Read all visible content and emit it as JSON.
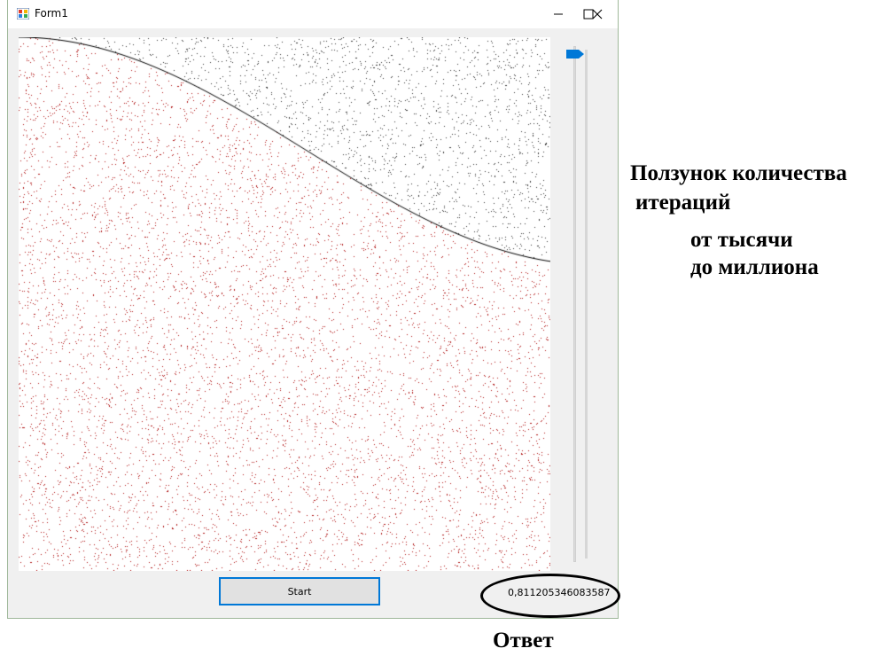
{
  "window": {
    "title": "Form1",
    "icons": {
      "app": "form-app-icon",
      "minimize": "minimize-icon",
      "maximize": "maximize-icon",
      "close": "close-icon"
    }
  },
  "start_button": {
    "label": "Start"
  },
  "result": {
    "value": "0,811205346083587"
  },
  "slider": {
    "position_fraction": 0.0,
    "accent": "#0078d7"
  },
  "plot": {
    "under_color": "#b01515",
    "over_color": "#333333",
    "curve_color": "#000000"
  },
  "annotations": {
    "slider_line1": "Ползунок количества",
    "slider_line2": "итераций",
    "slider_line3": "от тысячи",
    "slider_line4": "до миллиона",
    "answer": "Ответ"
  }
}
